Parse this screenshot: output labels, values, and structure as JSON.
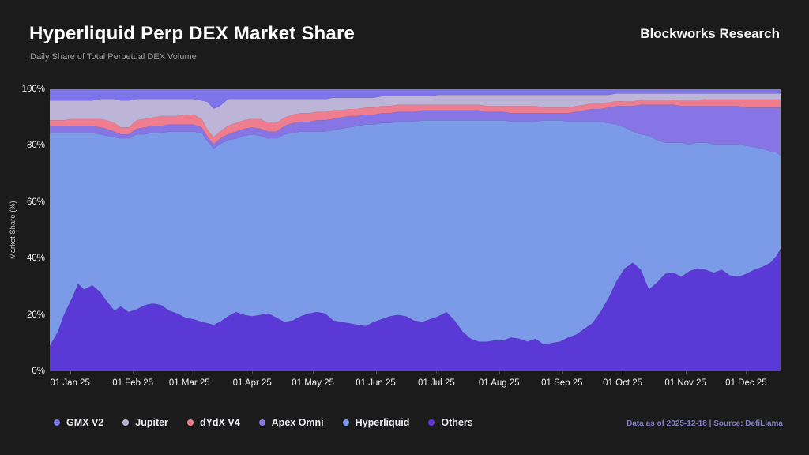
{
  "header": {
    "title": "Hyperliquid Perp DEX Market Share",
    "subtitle": "Daily Share of Total Perpetual DEX Volume",
    "brand": "Blockworks Research"
  },
  "footer": {
    "note": "Data as of 2025-12-18 | Source: DefiLlama"
  },
  "colors": {
    "background": "#1b1b1c",
    "title_text": "#ffffff",
    "subtitle_text": "#9d9da1",
    "axis_text": "#f2f2f2",
    "footer_text": "#837dbe"
  },
  "chart_data": {
    "type": "area",
    "stacked": true,
    "title": "Hyperliquid Perp DEX Market Share",
    "subtitle": "Daily Share of Total Perpetual DEX Volume",
    "xlabel": "",
    "ylabel": "Market Share (%)",
    "ylim": [
      0,
      100
    ],
    "grid": false,
    "legend_position": "bottom",
    "units": "percent share of total, values per date sum to 100",
    "y_ticks": [
      {
        "label": "0%",
        "value": 0
      },
      {
        "label": "20%",
        "value": 20
      },
      {
        "label": "40%",
        "value": 40
      },
      {
        "label": "60%",
        "value": 60
      },
      {
        "label": "80%",
        "value": 80
      },
      {
        "label": "100%",
        "value": 100
      }
    ],
    "x_ticks": [
      {
        "label": "01 Jan 25",
        "date": "2025-01-01"
      },
      {
        "label": "01 Feb 25",
        "date": "2025-02-01"
      },
      {
        "label": "01 Mar 25",
        "date": "2025-03-01"
      },
      {
        "label": "01 Apr 25",
        "date": "2025-04-01"
      },
      {
        "label": "01 May 25",
        "date": "2025-05-01"
      },
      {
        "label": "01 Jun 25",
        "date": "2025-06-01"
      },
      {
        "label": "01 Jul 25",
        "date": "2025-07-01"
      },
      {
        "label": "01 Aug 25",
        "date": "2025-08-01"
      },
      {
        "label": "01 Sep 25",
        "date": "2025-09-01"
      },
      {
        "label": "01 Oct 25",
        "date": "2025-10-01"
      },
      {
        "label": "01 Nov 25",
        "date": "2025-11-01"
      },
      {
        "label": "01 Dec 25",
        "date": "2025-12-01"
      }
    ],
    "stack_order_bottom_to_top": [
      "Others",
      "Hyperliquid",
      "Apex Omni",
      "dYdX V4",
      "Jupiter",
      "GMX V2"
    ],
    "dates": [
      "2024-12-22",
      "2024-12-26",
      "2024-12-29",
      "2025-01-02",
      "2025-01-05",
      "2025-01-08",
      "2025-01-12",
      "2025-01-16",
      "2025-01-19",
      "2025-01-23",
      "2025-01-26",
      "2025-01-30",
      "2025-02-03",
      "2025-02-07",
      "2025-02-11",
      "2025-02-15",
      "2025-02-19",
      "2025-02-23",
      "2025-02-27",
      "2025-03-03",
      "2025-03-07",
      "2025-03-10",
      "2025-03-13",
      "2025-03-16",
      "2025-03-20",
      "2025-03-24",
      "2025-03-28",
      "2025-04-01",
      "2025-04-05",
      "2025-04-09",
      "2025-04-13",
      "2025-04-17",
      "2025-04-21",
      "2025-04-25",
      "2025-04-29",
      "2025-05-03",
      "2025-05-07",
      "2025-05-11",
      "2025-05-15",
      "2025-05-19",
      "2025-05-23",
      "2025-05-27",
      "2025-05-31",
      "2025-06-04",
      "2025-06-08",
      "2025-06-12",
      "2025-06-16",
      "2025-06-20",
      "2025-06-24",
      "2025-06-28",
      "2025-07-02",
      "2025-07-06",
      "2025-07-10",
      "2025-07-14",
      "2025-07-18",
      "2025-07-22",
      "2025-07-26",
      "2025-07-30",
      "2025-08-03",
      "2025-08-07",
      "2025-08-11",
      "2025-08-15",
      "2025-08-19",
      "2025-08-23",
      "2025-08-27",
      "2025-08-31",
      "2025-09-04",
      "2025-09-08",
      "2025-09-12",
      "2025-09-16",
      "2025-09-20",
      "2025-09-24",
      "2025-09-28",
      "2025-10-02",
      "2025-10-06",
      "2025-10-10",
      "2025-10-14",
      "2025-10-18",
      "2025-10-22",
      "2025-10-26",
      "2025-10-30",
      "2025-11-03",
      "2025-11-07",
      "2025-11-11",
      "2025-11-15",
      "2025-11-19",
      "2025-11-23",
      "2025-11-27",
      "2025-12-01",
      "2025-12-05",
      "2025-12-09",
      "2025-12-13",
      "2025-12-16",
      "2025-12-18"
    ],
    "series": [
      {
        "name": "GMX V2",
        "color": "#7e74e9",
        "values": [
          4,
          4,
          4,
          4,
          4,
          4,
          4,
          3.5,
          3.5,
          3.5,
          4,
          4,
          3.5,
          3.5,
          3.5,
          3.5,
          3.5,
          3.5,
          3.5,
          3.5,
          4,
          4.5,
          7,
          6,
          3.5,
          3.5,
          3.5,
          3.5,
          3.5,
          3.5,
          3.5,
          3.5,
          3.5,
          3.5,
          3.5,
          3.5,
          3.5,
          3,
          3,
          3,
          3,
          3,
          3,
          2.5,
          2.5,
          2.5,
          2.5,
          2.5,
          2.5,
          2.5,
          2,
          2,
          2,
          2,
          2,
          2,
          2,
          2,
          2,
          2,
          2,
          2,
          2,
          2,
          2,
          2,
          2,
          2,
          2,
          2,
          2,
          2,
          1.5,
          1.5,
          1.5,
          1.5,
          1.5,
          1.5,
          1.5,
          1.5,
          1.5,
          1.5,
          1.5,
          1.5,
          1.5,
          1.5,
          1.5,
          1.5,
          1.5,
          1.5,
          1.5,
          1.5,
          1.5,
          1.5
        ]
      },
      {
        "name": "Jupiter",
        "color": "#bcb5d8",
        "values": [
          7,
          7,
          7,
          6.5,
          6.5,
          6.5,
          6.5,
          7,
          7.5,
          8.5,
          9.5,
          9.5,
          7.5,
          7,
          6.5,
          6,
          6,
          6,
          5.5,
          5.5,
          6.5,
          10,
          10,
          9,
          9.5,
          8.5,
          7.5,
          7,
          7,
          8.5,
          8.5,
          6.5,
          5.5,
          5,
          5,
          4.5,
          4.5,
          4.5,
          4.5,
          4,
          4,
          3.5,
          3.5,
          3.5,
          3.5,
          3,
          3,
          3,
          3,
          3,
          3.5,
          3.5,
          3.5,
          3.5,
          3.5,
          3.5,
          4,
          4,
          4,
          4,
          4,
          4,
          4,
          4.5,
          4.5,
          4.5,
          4.5,
          4,
          3.5,
          3,
          3,
          2.7,
          2.7,
          2.8,
          2.8,
          2.3,
          2.3,
          2.3,
          2.3,
          2.2,
          2.3,
          2.3,
          2.3,
          2,
          2,
          2,
          2,
          2,
          2,
          2,
          2,
          2,
          2,
          2
        ]
      },
      {
        "name": "dYdX V4",
        "color": "#ef7d90",
        "values": [
          2,
          2,
          2,
          2.5,
          2.5,
          2.5,
          2.5,
          3,
          3,
          3,
          2.5,
          2.5,
          3,
          3,
          3,
          3.5,
          3,
          3,
          3.5,
          3.5,
          3,
          2.5,
          2.5,
          2.5,
          3,
          3,
          3,
          3,
          3.5,
          3,
          3,
          3,
          3,
          3,
          3,
          3,
          3,
          3,
          2.5,
          2.5,
          2.5,
          2.5,
          2.5,
          2.5,
          2.5,
          2.5,
          2.5,
          2.5,
          2,
          2,
          2,
          2,
          2,
          2,
          2,
          2,
          2,
          2,
          2,
          2.5,
          2.5,
          2.5,
          2.5,
          2,
          2,
          2,
          2,
          2,
          2,
          2,
          2,
          1.8,
          1.8,
          1.7,
          1.7,
          1.7,
          1.7,
          1.7,
          1.7,
          1.8,
          2.2,
          2.2,
          2.2,
          2.5,
          2.5,
          2.5,
          2.5,
          2.5,
          3,
          3,
          3,
          3,
          3,
          3
        ]
      },
      {
        "name": "Apex Omni",
        "color": "#8875e5",
        "values": [
          2.5,
          2.5,
          2.5,
          2.5,
          2.5,
          2.5,
          2.5,
          2.5,
          2.5,
          2,
          1.5,
          1.5,
          2,
          2.5,
          2.5,
          2.5,
          2.5,
          2.5,
          2.5,
          2.5,
          2,
          1.5,
          1.5,
          2,
          2,
          2.5,
          2.5,
          2.5,
          2.5,
          2.5,
          2.5,
          3,
          3.5,
          3.5,
          3.5,
          4,
          4,
          4,
          4,
          4,
          3.5,
          3.5,
          3.5,
          3.5,
          3.5,
          3.5,
          3.5,
          3.5,
          3.5,
          3.5,
          3.5,
          3.5,
          3.5,
          3.5,
          3.5,
          3.5,
          3,
          3,
          3,
          3,
          3,
          3,
          3,
          2.5,
          2.5,
          2.5,
          3,
          3.5,
          4,
          4.5,
          4.5,
          5.5,
          6.5,
          7.5,
          9,
          10.5,
          11,
          12.5,
          13.5,
          13.5,
          13,
          13.5,
          13,
          13,
          13.5,
          13.5,
          13.5,
          13.5,
          13.5,
          14,
          14.5,
          15.5,
          16,
          17
        ]
      },
      {
        "name": "Hyperliquid",
        "color": "#7b9ae8",
        "values": [
          75.5,
          70.5,
          64.5,
          58.5,
          53.5,
          55.5,
          54,
          56,
          58.5,
          61.5,
          59.5,
          61.5,
          62,
          60.5,
          60.5,
          61,
          63.5,
          64.5,
          66,
          66.5,
          67,
          64.5,
          62.5,
          63,
          62.5,
          61.5,
          63.5,
          64.5,
          63.5,
          62,
          63.5,
          66.5,
          66.5,
          65.5,
          64.5,
          64,
          64.5,
          67.5,
          68.5,
          69.5,
          70.5,
          71.5,
          70,
          69.5,
          68.5,
          68.5,
          69,
          70.5,
          71.5,
          70.5,
          69.5,
          68,
          71,
          75,
          77.5,
          78.5,
          78.5,
          78,
          78,
          76.5,
          77,
          78,
          77,
          79.5,
          79,
          78.5,
          76.5,
          75.5,
          73.5,
          71.5,
          67.5,
          62,
          55.5,
          50,
          46.5,
          48,
          54.5,
          50.5,
          46.5,
          46,
          47.5,
          45,
          44.5,
          45,
          45.5,
          44.5,
          46.5,
          47,
          45.5,
          43.5,
          42,
          39.5,
          36.5,
          33
        ]
      },
      {
        "name": "Others",
        "color": "#5a39d6",
        "values": [
          9,
          14,
          20,
          26,
          31,
          29,
          30.5,
          28,
          25,
          21.5,
          23,
          21,
          22,
          23.5,
          24,
          23.5,
          21.5,
          20.5,
          19,
          18.5,
          17.5,
          17,
          16.5,
          17.5,
          19.5,
          21,
          20,
          19.5,
          20,
          20.5,
          19,
          17.5,
          18,
          19.5,
          20.5,
          21,
          20.5,
          18,
          17.5,
          17,
          16.5,
          16,
          17.5,
          18.5,
          19.5,
          20,
          19.5,
          18,
          17.5,
          18.5,
          19.5,
          21,
          18,
          14,
          11.5,
          10.5,
          10.5,
          11,
          11,
          12,
          11.5,
          10.5,
          11.5,
          9.5,
          10,
          10.5,
          12,
          13,
          15,
          17,
          21,
          26,
          32,
          36.5,
          38.5,
          36,
          29,
          31.5,
          34.5,
          35,
          33.5,
          35.5,
          36.5,
          36,
          35,
          36,
          34,
          33.5,
          34.5,
          36,
          37,
          38.5,
          41,
          43.5
        ]
      }
    ]
  }
}
